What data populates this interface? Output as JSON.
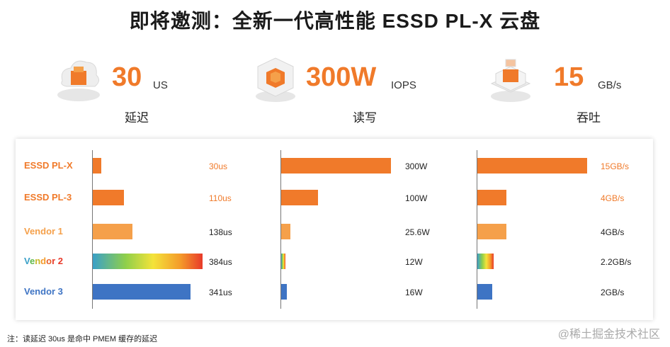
{
  "title": "即将邀测：全新一代高性能 ESSD PL-X 云盘",
  "metrics": [
    {
      "value": "30",
      "unit": "US",
      "label": "延迟",
      "icon": "cloud-cube-icon"
    },
    {
      "value": "300W",
      "unit": "IOPS",
      "label": "读写",
      "icon": "chip-cube-icon"
    },
    {
      "value": "15",
      "unit": "GB/s",
      "label": "吞吐",
      "icon": "stacked-box-icon"
    }
  ],
  "chart_data": [
    {
      "type": "bar",
      "orientation": "horizontal",
      "metric": "延迟",
      "categories": [
        "ESSD PL-X",
        "ESSD PL-3",
        "Vendor 1",
        "Vendor 2",
        "Vendor 3"
      ],
      "values": [
        30,
        110,
        138,
        384,
        341
      ],
      "labels": [
        "30us",
        "110us",
        "138us",
        "384us",
        "341us"
      ],
      "xlim": [
        0,
        384
      ]
    },
    {
      "type": "bar",
      "orientation": "horizontal",
      "metric": "读写",
      "categories": [
        "ESSD PL-X",
        "ESSD PL-3",
        "Vendor 1",
        "Vendor 2",
        "Vendor 3"
      ],
      "values": [
        300,
        100,
        25.6,
        12,
        16
      ],
      "labels": [
        "300W",
        "100W",
        "25.6W",
        "12W",
        "16W"
      ],
      "xlim": [
        0,
        300
      ]
    },
    {
      "type": "bar",
      "orientation": "horizontal",
      "metric": "吞吐",
      "categories": [
        "ESSD PL-X",
        "ESSD PL-3",
        "Vendor 1",
        "Vendor 2",
        "Vendor 3"
      ],
      "values": [
        15,
        4,
        4,
        2.2,
        2
      ],
      "labels": [
        "15GB/s",
        "4GB/s",
        "4GB/s",
        "2.2GB/s",
        "2GB/s"
      ],
      "xlim": [
        0,
        15
      ]
    }
  ],
  "colors": {
    "essd_plx": "#f07a2a",
    "essd_pl3": "#f07a2a",
    "vendor1": "#f5a04a",
    "vendor2": "rainbow",
    "vendor3": "#3e74c4",
    "highlight_text": "#f07a2a",
    "vendor3_text": "#3e74c4"
  },
  "footnote": "注：读延迟 30us 是命中 PMEM 缓存的延迟",
  "watermark": "@稀土掘金技术社区"
}
